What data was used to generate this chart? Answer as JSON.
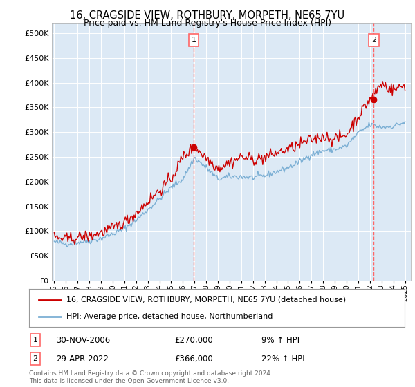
{
  "title": "16, CRAGSIDE VIEW, ROTHBURY, MORPETH, NE65 7YU",
  "subtitle": "Price paid vs. HM Land Registry's House Price Index (HPI)",
  "background_color": "#ffffff",
  "plot_bg_color": "#dce9f5",
  "years": [
    1995,
    1996,
    1997,
    1998,
    1999,
    2000,
    2001,
    2002,
    2003,
    2004,
    2005,
    2006,
    2007,
    2008,
    2009,
    2010,
    2011,
    2012,
    2013,
    2014,
    2015,
    2016,
    2017,
    2018,
    2019,
    2020,
    2021,
    2022,
    2023,
    2024,
    2025
  ],
  "hpi_values": [
    78000,
    74000,
    77000,
    80000,
    85000,
    94000,
    105000,
    122000,
    143000,
    165000,
    188000,
    205000,
    248000,
    228000,
    205000,
    210000,
    210000,
    208000,
    212000,
    220000,
    228000,
    240000,
    255000,
    262000,
    265000,
    272000,
    298000,
    315000,
    310000,
    312000,
    320000
  ],
  "property_values": [
    88000,
    83000,
    87000,
    90000,
    97000,
    105000,
    118000,
    136000,
    160000,
    182000,
    205000,
    250000,
    270000,
    248000,
    228000,
    238000,
    250000,
    245000,
    248000,
    258000,
    265000,
    275000,
    285000,
    292000,
    285000,
    295000,
    332000,
    366000,
    398000,
    385000,
    395000
  ],
  "purchase_1_date": "30-NOV-2006",
  "purchase_1_price": 270000,
  "purchase_1_pct": "9%",
  "purchase_1_year": 2006.92,
  "purchase_2_date": "29-APR-2022",
  "purchase_2_price": 366000,
  "purchase_2_pct": "22%",
  "purchase_2_year": 2022.33,
  "red_line_color": "#cc0000",
  "blue_line_color": "#7bafd4",
  "vline_color": "#ff6666",
  "marker_color": "#cc0000",
  "legend_label_red": "16, CRAGSIDE VIEW, ROTHBURY, MORPETH, NE65 7YU (detached house)",
  "legend_label_blue": "HPI: Average price, detached house, Northumberland",
  "footnote": "Contains HM Land Registry data © Crown copyright and database right 2024.\nThis data is licensed under the Open Government Licence v3.0.",
  "ylim": [
    0,
    520000
  ],
  "yticks": [
    0,
    50000,
    100000,
    150000,
    200000,
    250000,
    300000,
    350000,
    400000,
    450000,
    500000
  ],
  "noise_scale_hpi": 3000,
  "noise_scale_prop": 6000,
  "random_seed": 42
}
